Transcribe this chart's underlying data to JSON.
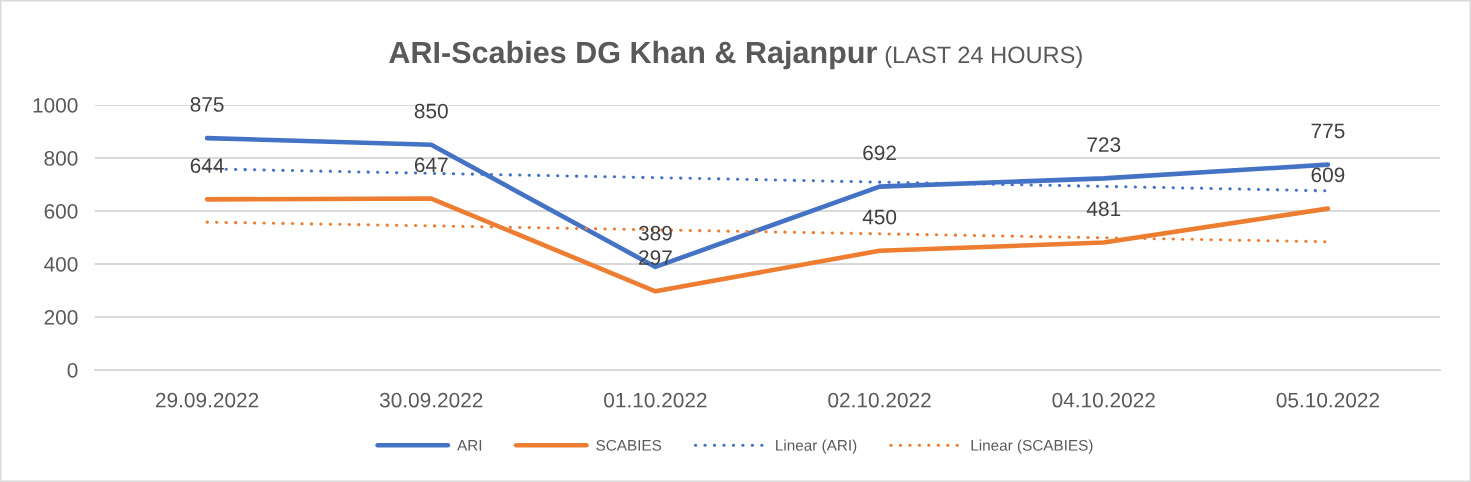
{
  "chart_data": {
    "type": "line",
    "title": "ARI-Scabies DG Khan & Rajanpur",
    "subtitle": "(LAST 24 HOURS)",
    "categories": [
      "29.09.2022",
      "30.09.2022",
      "01.10.2022",
      "02.10.2022",
      "04.10.2022",
      "05.10.2022"
    ],
    "series": [
      {
        "name": "ARI",
        "color": "#4472c4",
        "values": [
          875,
          850,
          389,
          692,
          723,
          775
        ],
        "value_labels": [
          "875",
          "850",
          "389",
          "692",
          "723",
          "775"
        ]
      },
      {
        "name": "SCABIES",
        "color": "#ed7d31",
        "values": [
          644,
          647,
          297,
          450,
          481,
          609
        ],
        "value_labels": [
          "644",
          "647",
          "297",
          "450",
          "481",
          "609"
        ]
      },
      {
        "name": "Linear (ARI)",
        "color": "#4472c4",
        "line_style": "dotted",
        "values": [
          759,
          742,
          726,
          709,
          693,
          676
        ]
      },
      {
        "name": "Linear (SCABIES)",
        "color": "#ed7d31",
        "line_style": "dotted",
        "values": [
          558,
          544,
          529,
          514,
          499,
          484
        ]
      }
    ],
    "ylim": [
      0,
      1000
    ],
    "yticks": [
      0,
      200,
      400,
      600,
      800,
      1000
    ],
    "grid": "y",
    "legend": "bottom",
    "line_style": "solid"
  }
}
